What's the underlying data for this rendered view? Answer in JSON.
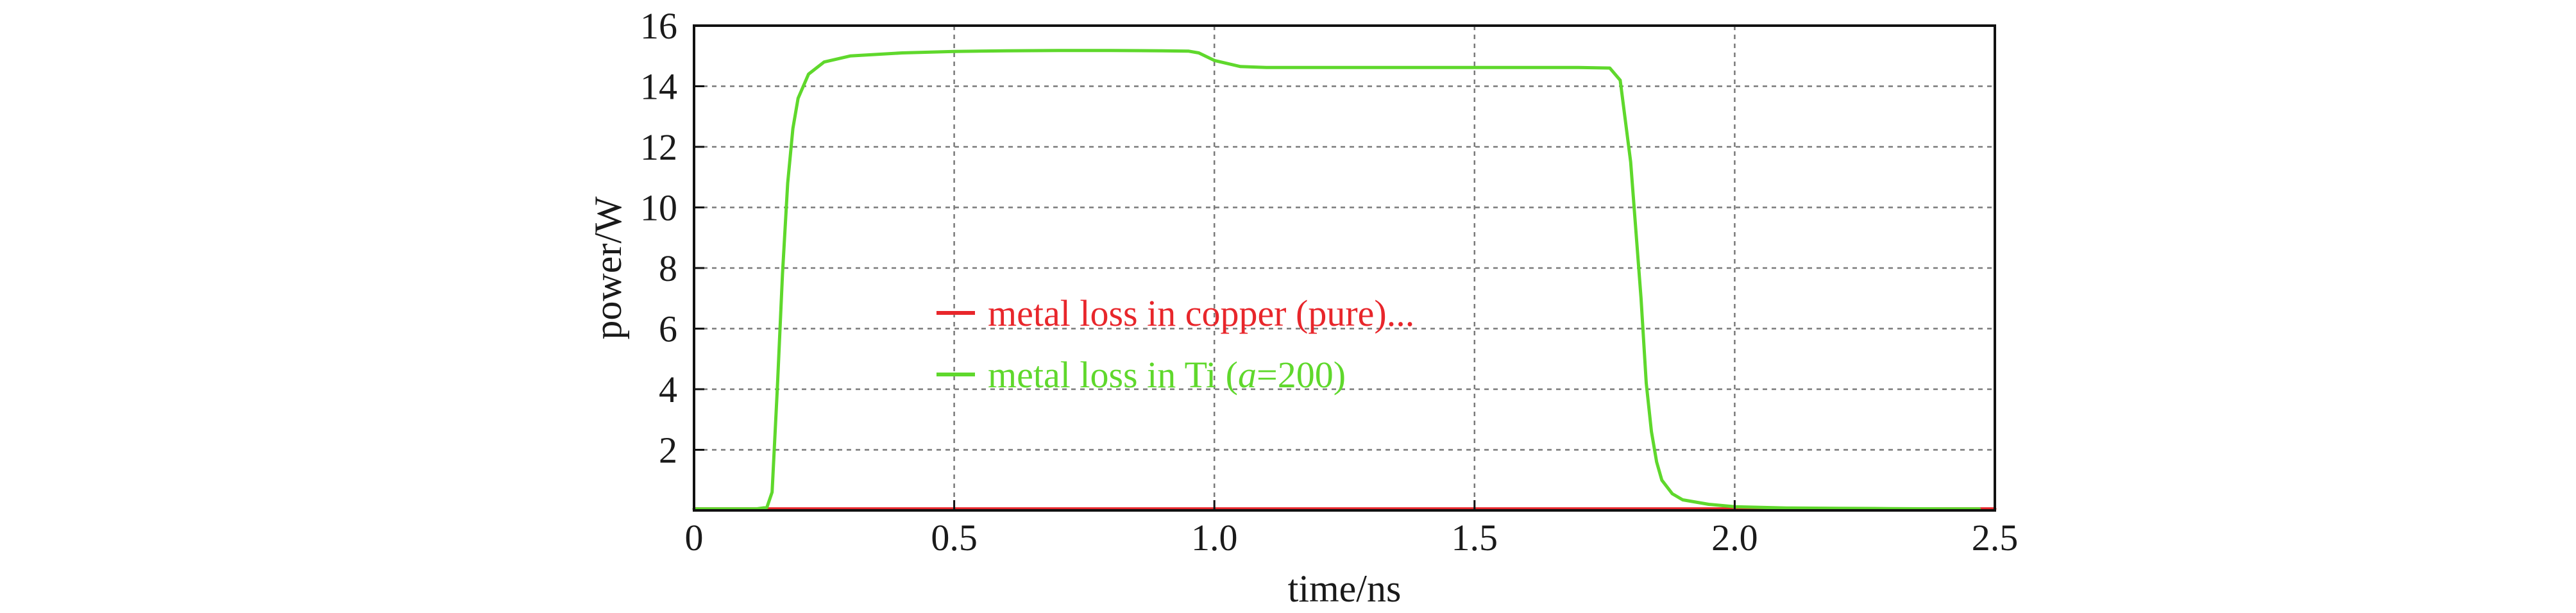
{
  "chart_data": {
    "type": "line",
    "title": "",
    "xlabel": "time/ns",
    "ylabel": "power/W",
    "xlim": [
      0,
      2.5
    ],
    "ylim": [
      0,
      16
    ],
    "xticks": [
      {
        "value": 0,
        "label": "0"
      },
      {
        "value": 0.5,
        "label": "0.5"
      },
      {
        "value": 1.0,
        "label": "1.0"
      },
      {
        "value": 1.5,
        "label": "1.5"
      },
      {
        "value": 2.0,
        "label": "2.0"
      },
      {
        "value": 2.5,
        "label": "2.5"
      }
    ],
    "yticks": [
      {
        "value": 2,
        "label": "2"
      },
      {
        "value": 4,
        "label": "4"
      },
      {
        "value": 6,
        "label": "6"
      },
      {
        "value": 8,
        "label": "8"
      },
      {
        "value": 10,
        "label": "10"
      },
      {
        "value": 12,
        "label": "12"
      },
      {
        "value": 14,
        "label": "14"
      },
      {
        "value": 16,
        "label": "16"
      }
    ],
    "grid": true,
    "legend_position": "center-left",
    "series": [
      {
        "name": "metal loss in copper (pure)...",
        "color": "#e8262b",
        "x": [
          0,
          0.5,
          1.0,
          1.5,
          2.0,
          2.5
        ],
        "y": [
          0.05,
          0.05,
          0.05,
          0.05,
          0.05,
          0.05
        ]
      },
      {
        "name": "metal loss in Ti (a=200)",
        "legend_parts": [
          "metal loss in Ti (",
          "a",
          "=200)"
        ],
        "color": "#5fd82c",
        "x": [
          0,
          0.12,
          0.14,
          0.15,
          0.16,
          0.17,
          0.18,
          0.19,
          0.2,
          0.22,
          0.25,
          0.3,
          0.4,
          0.5,
          0.6,
          0.7,
          0.8,
          0.9,
          0.95,
          0.97,
          1.0,
          1.05,
          1.1,
          1.2,
          1.3,
          1.4,
          1.5,
          1.6,
          1.7,
          1.76,
          1.78,
          1.8,
          1.82,
          1.83,
          1.84,
          1.85,
          1.86,
          1.88,
          1.9,
          1.95,
          2.0,
          2.05,
          2.1,
          2.2,
          2.3,
          2.4,
          2.47
        ],
        "y": [
          0.05,
          0.05,
          0.1,
          0.6,
          4.0,
          7.8,
          10.8,
          12.6,
          13.6,
          14.4,
          14.8,
          15.0,
          15.1,
          15.15,
          15.17,
          15.18,
          15.18,
          15.17,
          15.16,
          15.1,
          14.85,
          14.65,
          14.62,
          14.62,
          14.62,
          14.62,
          14.62,
          14.62,
          14.62,
          14.6,
          14.2,
          11.5,
          7.0,
          4.2,
          2.6,
          1.6,
          1.0,
          0.55,
          0.35,
          0.2,
          0.12,
          0.1,
          0.08,
          0.07,
          0.06,
          0.05,
          0.05
        ]
      }
    ]
  }
}
